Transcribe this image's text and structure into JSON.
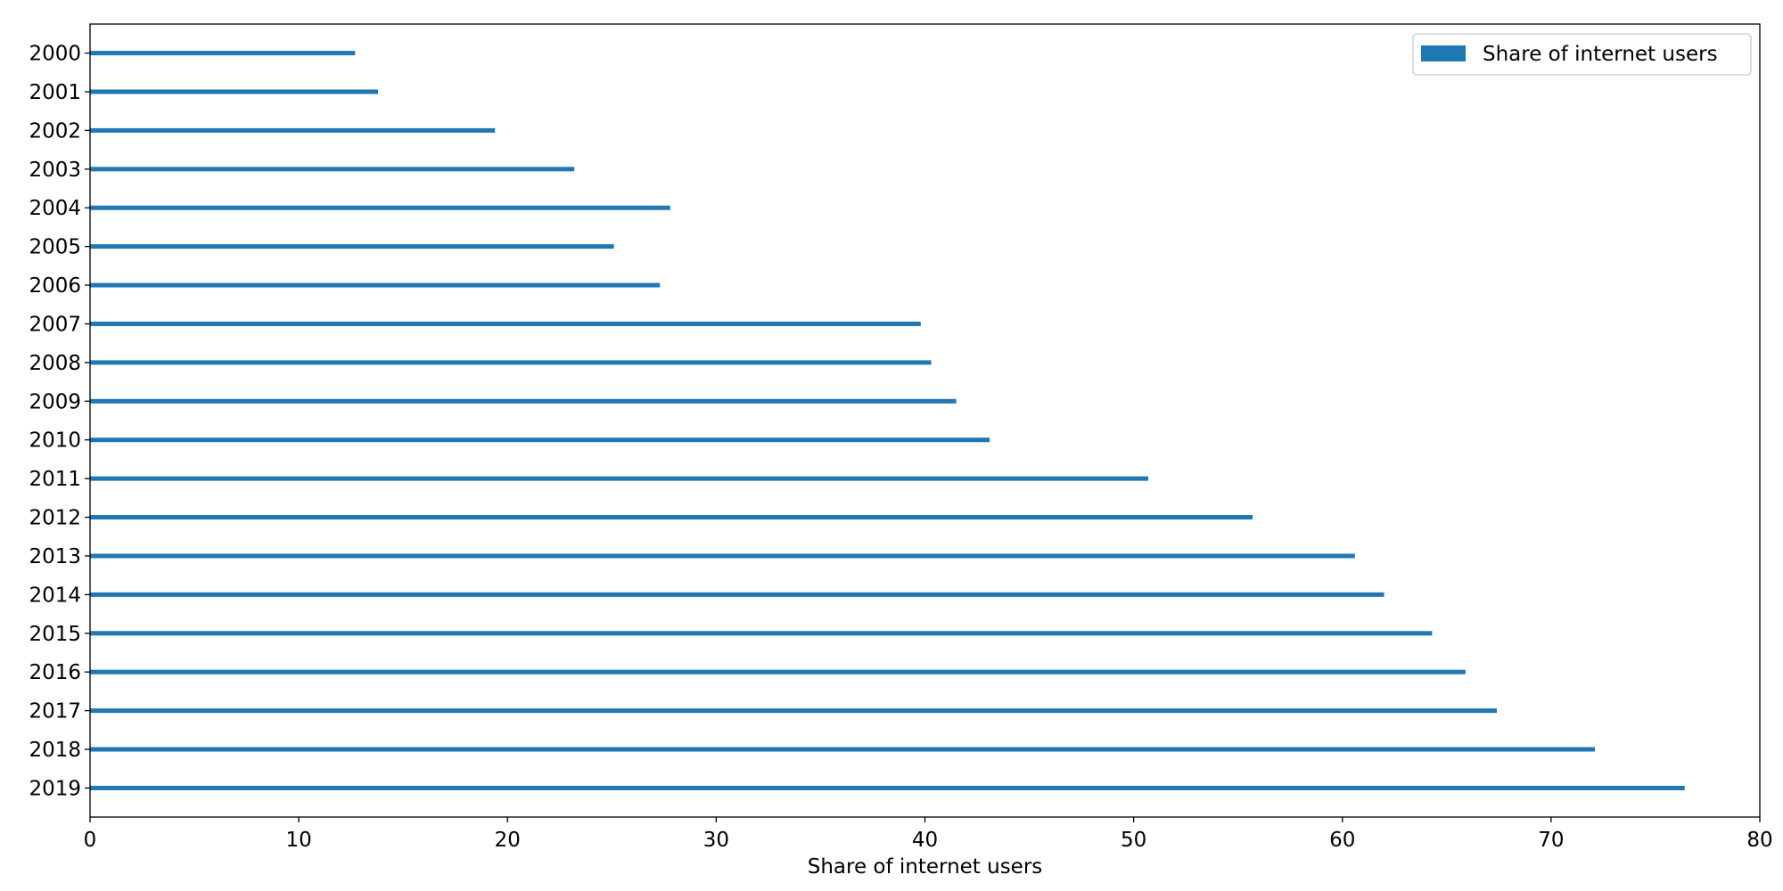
{
  "chart_data": {
    "type": "bar",
    "orientation": "horizontal",
    "categories": [
      "2000",
      "2001",
      "2002",
      "2003",
      "2004",
      "2005",
      "2006",
      "2007",
      "2008",
      "2009",
      "2010",
      "2011",
      "2012",
      "2013",
      "2014",
      "2015",
      "2016",
      "2017",
      "2018",
      "2019"
    ],
    "series": [
      {
        "name": "Share of internet users",
        "color": "#1f77b4",
        "values": [
          12.7,
          13.8,
          19.4,
          23.2,
          27.8,
          25.1,
          27.3,
          39.8,
          40.3,
          41.5,
          43.1,
          50.7,
          55.7,
          60.6,
          62.0,
          64.3,
          65.9,
          67.4,
          72.1,
          76.4
        ]
      }
    ],
    "title": "",
    "xlabel": "Share of internet users",
    "ylabel": "",
    "xlim": [
      0,
      80
    ],
    "xticks": [
      0,
      10,
      20,
      30,
      40,
      50,
      60,
      70,
      80
    ],
    "category_order": "first-at-top",
    "grid": false,
    "legend_position": "top-right"
  }
}
